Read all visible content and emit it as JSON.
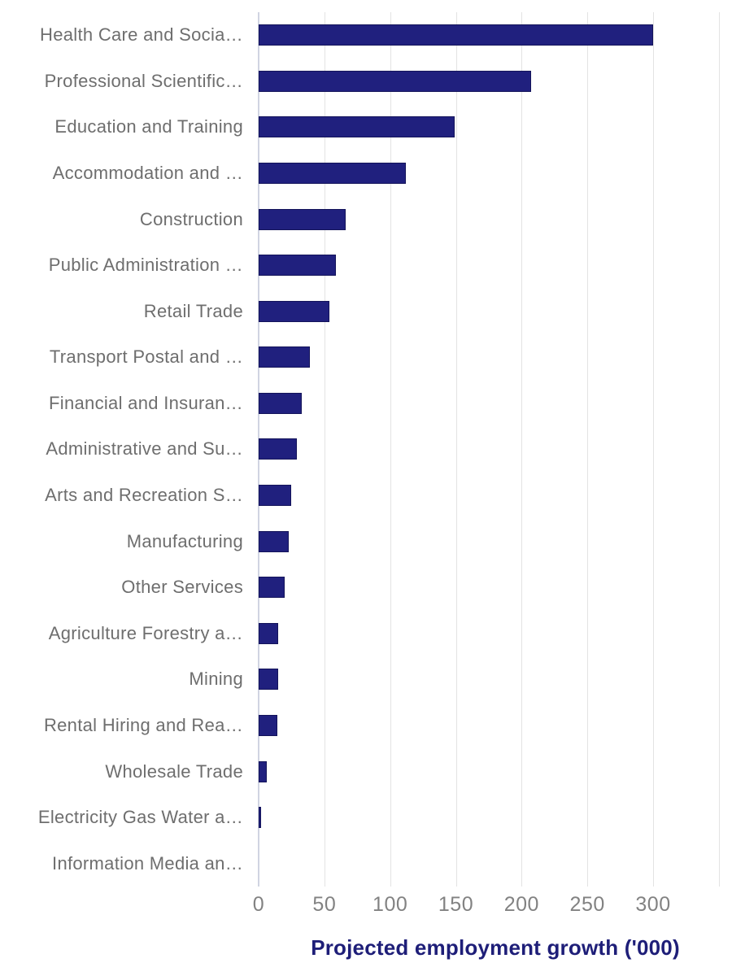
{
  "chart_data": {
    "type": "bar",
    "orientation": "horizontal",
    "title": "",
    "xlabel": "Projected employment growth ('000)",
    "ylabel": "",
    "categories": [
      "Health Care and Socia…",
      "Professional Scientific…",
      "Education and Training",
      "Accommodation and …",
      "Construction",
      "Public Administration …",
      "Retail Trade",
      "Transport Postal and …",
      "Financial and Insuran…",
      "Administrative and Su…",
      "Arts and Recreation S…",
      "Manufacturing",
      "Other Services",
      "Agriculture Forestry a…",
      "Mining",
      "Rental Hiring and Rea…",
      "Wholesale Trade",
      "Electricity Gas Water a…",
      "Information Media an…"
    ],
    "values": [
      300,
      207,
      149,
      112,
      66,
      59,
      54,
      39,
      33,
      29,
      25,
      23,
      20,
      15,
      15,
      14,
      6,
      2,
      0
    ],
    "xlim": [
      0,
      350
    ],
    "x_ticks": [
      0,
      50,
      100,
      150,
      200,
      250,
      300
    ],
    "grid_lines": [
      0,
      50,
      100,
      150,
      200,
      250,
      300,
      350
    ],
    "grid": true,
    "legend": false,
    "colors": {
      "bar_fill": "#20207e",
      "bar_border": "#14145a",
      "axis_title": "#1e1e78",
      "category_label": "#6e6e6e",
      "tick_label": "#828282",
      "gridline": "#e3e3e3",
      "zero_line": "#d0d4e2",
      "background": "#ffffff"
    }
  }
}
